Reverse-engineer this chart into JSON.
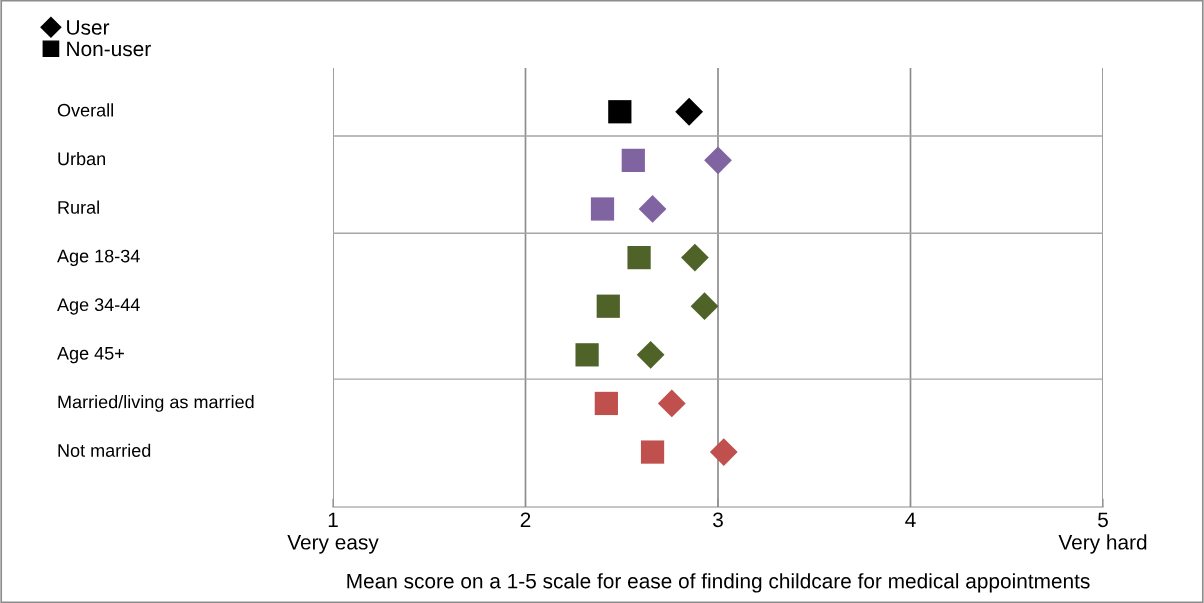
{
  "chart_data": {
    "type": "scatter",
    "orientation": "horizontal",
    "xlabel": "Mean score on a 1-5 scale for ease of finding childcare for medical appointments",
    "categories": [
      "Overall",
      "Urban",
      "Rural",
      "Age 18-34",
      "Age 34-44",
      "Age 45+",
      "Married/living as married",
      "Not married"
    ],
    "series": [
      {
        "name": "User",
        "marker": "diamond",
        "color": "#000000",
        "colors": [
          "#000000",
          "#8064a2",
          "#8064a2",
          "#4f6228",
          "#4f6228",
          "#4f6228",
          "#c0504d",
          "#c0504d"
        ],
        "values": [
          2.85,
          3.0,
          2.66,
          2.88,
          2.93,
          2.65,
          2.76,
          3.03
        ]
      },
      {
        "name": "Non-user",
        "marker": "square",
        "color": "#000000",
        "colors": [
          "#000000",
          "#8064a2",
          "#8064a2",
          "#4f6228",
          "#4f6228",
          "#4f6228",
          "#c0504d",
          "#c0504d"
        ],
        "values": [
          2.49,
          2.56,
          2.4,
          2.59,
          2.43,
          2.32,
          2.42,
          2.66
        ]
      }
    ],
    "xlim": [
      1,
      5
    ],
    "xticks": [
      {
        "value": 1,
        "label": "1\nVery easy"
      },
      2,
      3,
      4,
      {
        "value": 5,
        "label": "5\nVery hard"
      }
    ],
    "grid": "x",
    "legend": "top left"
  }
}
